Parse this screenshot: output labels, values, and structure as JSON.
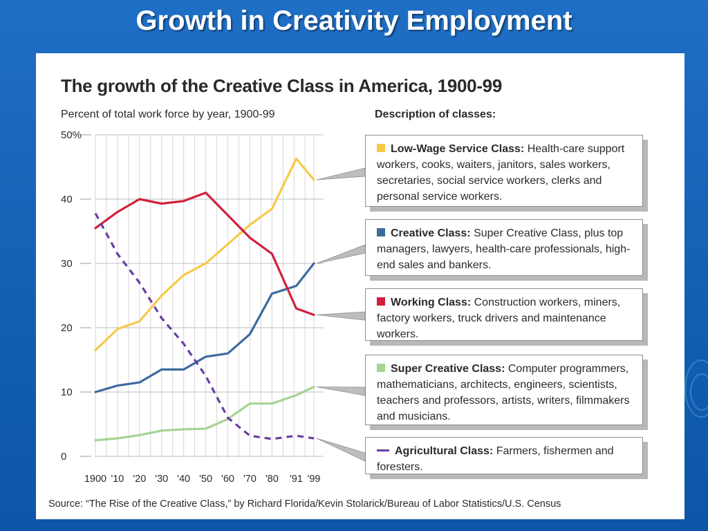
{
  "slide": {
    "title": "Growth in Creativity Employment"
  },
  "chart_data": {
    "type": "line",
    "title": "The growth of the Creative Class in America, 1900-99",
    "subtitle": "Percent of total work force by year, 1900-99",
    "x": [
      1900,
      1910,
      1920,
      1930,
      1940,
      1950,
      1960,
      1970,
      1980,
      1991,
      1999
    ],
    "x_tick_labels": [
      "1900",
      "'10",
      "'20",
      "'30",
      "'40",
      "'50",
      "'60",
      "'70",
      "'80",
      "'91",
      "'99"
    ],
    "y_tick_labels": [
      "50%",
      "40",
      "30",
      "20",
      "10",
      "0"
    ],
    "ylim": [
      0,
      50
    ],
    "grid": "vertical",
    "series": [
      {
        "key": "low_wage",
        "name": "Low-Wage Service Class",
        "color": "#f7c94a",
        "dashed": false,
        "values": [
          16.5,
          19.8,
          21.0,
          25.0,
          28.2,
          30.0,
          33.0,
          36.0,
          38.5,
          46.3,
          43.0
        ]
      },
      {
        "key": "creative",
        "name": "Creative Class",
        "color": "#3c6a9e",
        "dashed": false,
        "values": [
          10.0,
          11.0,
          11.5,
          13.5,
          13.5,
          15.5,
          16.0,
          19.0,
          25.3,
          26.5,
          30.0
        ]
      },
      {
        "key": "working",
        "name": "Working Class",
        "color": "#d0203c",
        "dashed": false,
        "values": [
          35.5,
          38.0,
          40.0,
          39.3,
          39.7,
          41.0,
          37.5,
          34.0,
          31.5,
          23.0,
          22.0
        ]
      },
      {
        "key": "super_creative",
        "name": "Super Creative Class",
        "color": "#a6d393",
        "dashed": false,
        "values": [
          2.5,
          2.8,
          3.3,
          4.0,
          4.2,
          4.3,
          5.8,
          8.2,
          8.2,
          9.5,
          10.8
        ]
      },
      {
        "key": "agricultural",
        "name": "Agricultural Class",
        "color": "#6a3ea0",
        "dashed": true,
        "values": [
          37.8,
          31.5,
          27.0,
          21.5,
          17.5,
          12.5,
          6.0,
          3.2,
          2.7,
          3.2,
          2.8
        ]
      }
    ]
  },
  "descriptions": {
    "heading": "Description of classes:",
    "items": [
      {
        "name": "Low-Wage Service Class:",
        "text": "Health-care support workers, cooks, waiters, janitors, sales workers, secretaries, social service workers, clerks and personal service workers.",
        "color": "#f7c94a",
        "dashed": false
      },
      {
        "name": "Creative Class:",
        "text": "Super Creative Class, plus top managers, lawyers, health-care professionals, high-end sales and bankers.",
        "color": "#3c6a9e",
        "dashed": false
      },
      {
        "name": "Working Class:",
        "text": "Construction workers, miners, factory workers, truck drivers and maintenance workers.",
        "color": "#d0203c",
        "dashed": false
      },
      {
        "name": "Super Creative Class:",
        "text": "Computer programmers, mathematicians, architects, engineers, scientists, teachers and professors, artists, writers, filmmakers and musicians.",
        "color": "#a6d393",
        "dashed": false
      },
      {
        "name": "Agricultural Class:",
        "text": "Farmers, fishermen and foresters.",
        "color": "#6a3ea0",
        "dashed": true
      }
    ]
  },
  "source": "Source: “The Rise of the Creative Class,” by Richard Florida/Kevin Stolarick/Bureau of Labor Statistics/U.S. Census"
}
